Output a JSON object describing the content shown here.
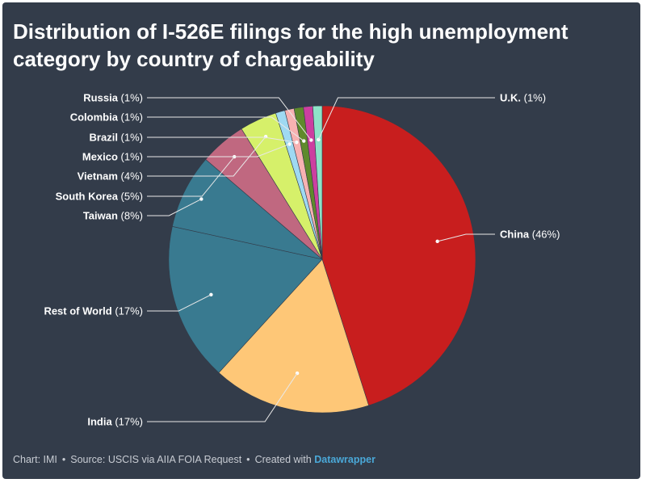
{
  "chart_data": {
    "type": "pie",
    "title": "Distribution of I-526E filings for the high unemployment category by country of chargeability",
    "slices": [
      {
        "name": "China",
        "value": 46,
        "color": "#c81e1e"
      },
      {
        "name": "India",
        "value": 17,
        "color": "#fec777"
      },
      {
        "name": "Rest of World",
        "value": 17,
        "color": "#397a90"
      },
      {
        "name": "Taiwan",
        "value": 8,
        "color": "#397a90"
      },
      {
        "name": "South Korea",
        "value": 5,
        "color": "#c06880"
      },
      {
        "name": "Vietnam",
        "value": 4,
        "color": "#d6f06a"
      },
      {
        "name": "Mexico",
        "value": 1,
        "color": "#9fd9f2"
      },
      {
        "name": "Brazil",
        "value": 1,
        "color": "#f7b2b2"
      },
      {
        "name": "Colombia",
        "value": 1,
        "color": "#5f8a2c"
      },
      {
        "name": "Russia",
        "value": 1,
        "color": "#cc3fa0"
      },
      {
        "name": "U.K.",
        "value": 1,
        "color": "#8ee3c8"
      }
    ]
  },
  "footer": {
    "chart_credit": "Chart: IMI",
    "source": "Source: USCIS via AIIA FOIA Request",
    "created_with": "Created with",
    "brand": "Datawrapper",
    "separator": "•"
  },
  "colors": {
    "background": "#333c4a",
    "leader_line": "#e8e8e8",
    "brand": "#4aa8d8"
  }
}
